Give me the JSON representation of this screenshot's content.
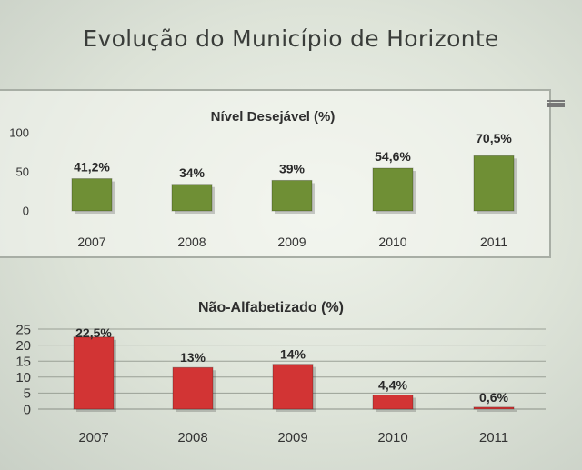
{
  "slide": {
    "title": "Evolução do Município de Horizonte"
  },
  "chart_data": [
    {
      "type": "bar",
      "title": "Nível Desejável (%)",
      "categories": [
        "2007",
        "2008",
        "2009",
        "2010",
        "2011"
      ],
      "values": [
        41.2,
        34,
        39,
        54.6,
        70.5
      ],
      "data_labels": [
        "41,2%",
        "34%",
        "39%",
        "54,6%",
        "70,5%"
      ],
      "yticks": [
        "100",
        "50",
        "0"
      ],
      "ylim": [
        0,
        100
      ],
      "grid": false,
      "bar_color": "#6f8f35"
    },
    {
      "type": "bar",
      "title": "Não-Alfabetizado (%)",
      "categories": [
        "2007",
        "2008",
        "2009",
        "2010",
        "2011"
      ],
      "values": [
        22.5,
        13,
        14,
        4.4,
        0.6
      ],
      "data_labels": [
        "22,5%",
        "13%",
        "14%",
        "4,4%",
        "0,6%"
      ],
      "yticks": [
        "25",
        "20",
        "15",
        "10",
        "5",
        "0"
      ],
      "ylim": [
        0,
        25
      ],
      "grid": true,
      "bar_color": "#d23434"
    }
  ]
}
